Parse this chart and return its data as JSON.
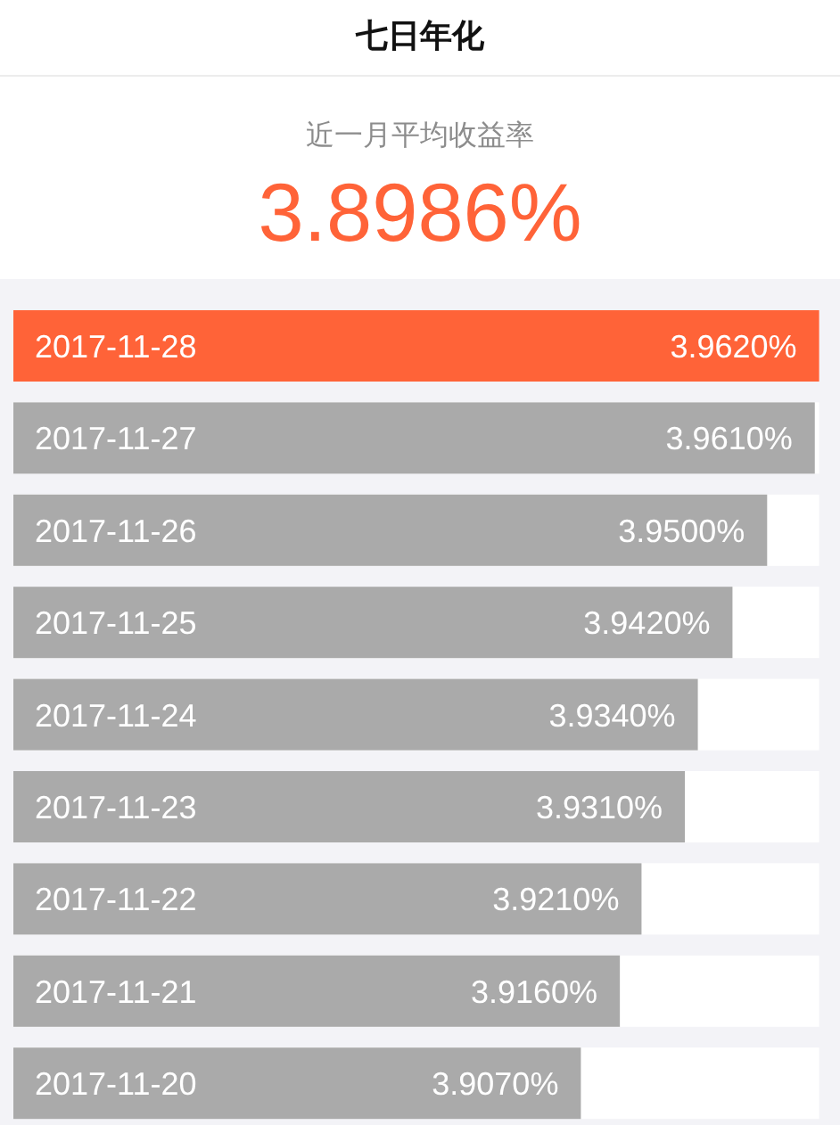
{
  "chart_data": {
    "type": "bar",
    "orientation": "horizontal",
    "title": "七日年化",
    "subtitle": "近一月平均收益率",
    "annotations": [
      "3.8986%"
    ],
    "categories": [
      "2017-11-28",
      "2017-11-27",
      "2017-11-26",
      "2017-11-25",
      "2017-11-24",
      "2017-11-23",
      "2017-11-22",
      "2017-11-21",
      "2017-11-20"
    ],
    "values": [
      3.962,
      3.961,
      3.95,
      3.942,
      3.934,
      3.931,
      3.921,
      3.916,
      3.907
    ],
    "colors": [
      "#ff6338",
      "#aaaaaa",
      "#aaaaaa",
      "#aaaaaa",
      "#aaaaaa",
      "#aaaaaa",
      "#aaaaaa",
      "#aaaaaa",
      "#aaaaaa"
    ],
    "value_labels": [
      "3.9620%",
      "3.9610%",
      "3.9500%",
      "3.9420%",
      "3.9340%",
      "3.9310%",
      "3.9210%",
      "3.9160%",
      "3.9070%"
    ],
    "xlim": [
      3.776,
      3.962
    ],
    "tick_labels": "y"
  }
}
